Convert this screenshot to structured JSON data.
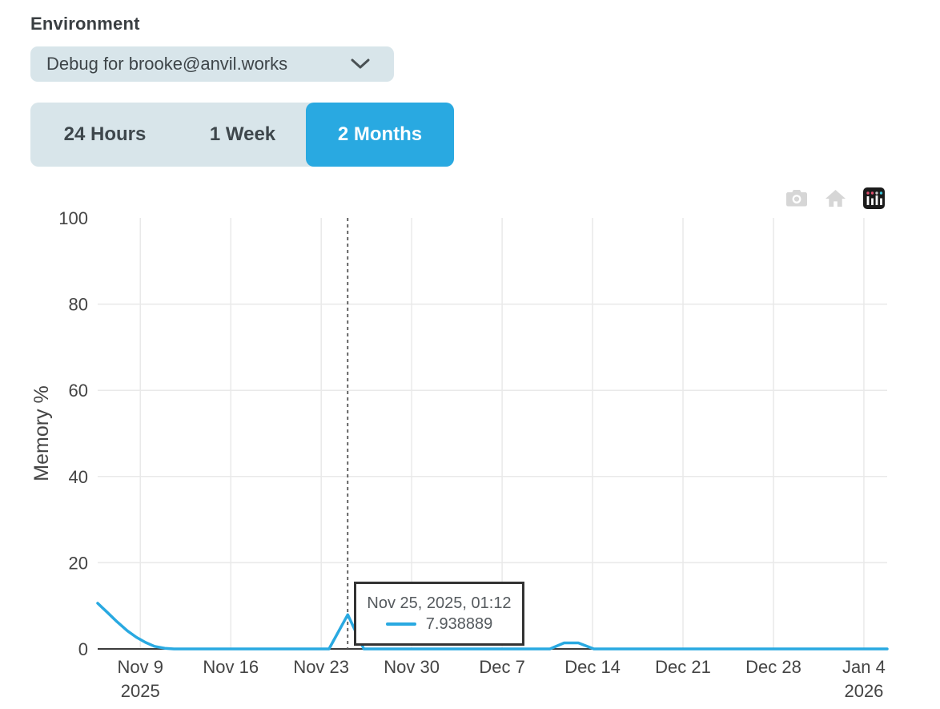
{
  "environment": {
    "label": "Environment",
    "selected": "Debug for brooke@anvil.works"
  },
  "time_ranges": {
    "options": [
      {
        "label": "24 Hours",
        "active": false
      },
      {
        "label": "1 Week",
        "active": false
      },
      {
        "label": "2 Months",
        "active": true
      }
    ]
  },
  "modebar": {
    "icons": [
      "camera-icon",
      "home-icon",
      "plotly-logo-icon"
    ]
  },
  "tooltip": {
    "title": "Nov 25, 2025, 01:12",
    "value": "7.938889"
  },
  "colors": {
    "accent_blue": "#29a9e1",
    "control_bg": "#d8e5ea",
    "active_tab_text": "#ffffff",
    "text_dark": "#3a3f42",
    "tooltip_text": "#555a5e",
    "tooltip_border": "#333333",
    "modebar_icon_gray": "#d6d6d6",
    "plotly_logo_bg": "#1b1b1b"
  },
  "chart_data": {
    "type": "line",
    "title": "",
    "xlabel": "",
    "ylabel": "Memory %",
    "ylim": [
      0,
      100
    ],
    "yticks": [
      0,
      20,
      40,
      60,
      80,
      100
    ],
    "x_range_days": [
      -3.3,
      57.8
    ],
    "x_day_reference": "days after Nov 9, 2025",
    "grid": true,
    "legend_position": "none",
    "xticks": [
      {
        "day": 0,
        "label": "Nov 9",
        "sublabel": "2025"
      },
      {
        "day": 7,
        "label": "Nov 16"
      },
      {
        "day": 14,
        "label": "Nov 23"
      },
      {
        "day": 21,
        "label": "Nov 30"
      },
      {
        "day": 28,
        "label": "Dec 7"
      },
      {
        "day": 35,
        "label": "Dec 14"
      },
      {
        "day": 42,
        "label": "Dec 21"
      },
      {
        "day": 49,
        "label": "Dec 28"
      },
      {
        "day": 56,
        "label": "Jan 4",
        "sublabel": "2026"
      }
    ],
    "series": [
      {
        "name": "Memory %",
        "color": "#29a9e1",
        "points": [
          {
            "day": -3.3,
            "value": 10.6
          },
          {
            "day": -2.6,
            "value": 8.6
          },
          {
            "day": -1.8,
            "value": 6.3
          },
          {
            "day": -1.0,
            "value": 4.2
          },
          {
            "day": -0.3,
            "value": 2.7
          },
          {
            "day": 0.4,
            "value": 1.5
          },
          {
            "day": 1.1,
            "value": 0.6
          },
          {
            "day": 1.9,
            "value": 0.15
          },
          {
            "day": 2.6,
            "value": 0
          },
          {
            "day": 14.6,
            "value": 0
          },
          {
            "day": 16.05,
            "value": 7.938889
          },
          {
            "day": 17.3,
            "value": 0
          },
          {
            "day": 31.7,
            "value": 0
          },
          {
            "day": 32.8,
            "value": 1.4
          },
          {
            "day": 33.9,
            "value": 1.4
          },
          {
            "day": 35.1,
            "value": 0
          },
          {
            "day": 57.8,
            "value": 0
          }
        ]
      }
    ],
    "hover": {
      "day": 16.05,
      "value": 7.938889,
      "label": "Nov 25, 2025, 01:12"
    },
    "style": {
      "grid_color": "#e9e9e9",
      "zeroline_color": "#3c3c3c",
      "crosshair_color": "#555555",
      "tick_color": "#444444"
    }
  }
}
